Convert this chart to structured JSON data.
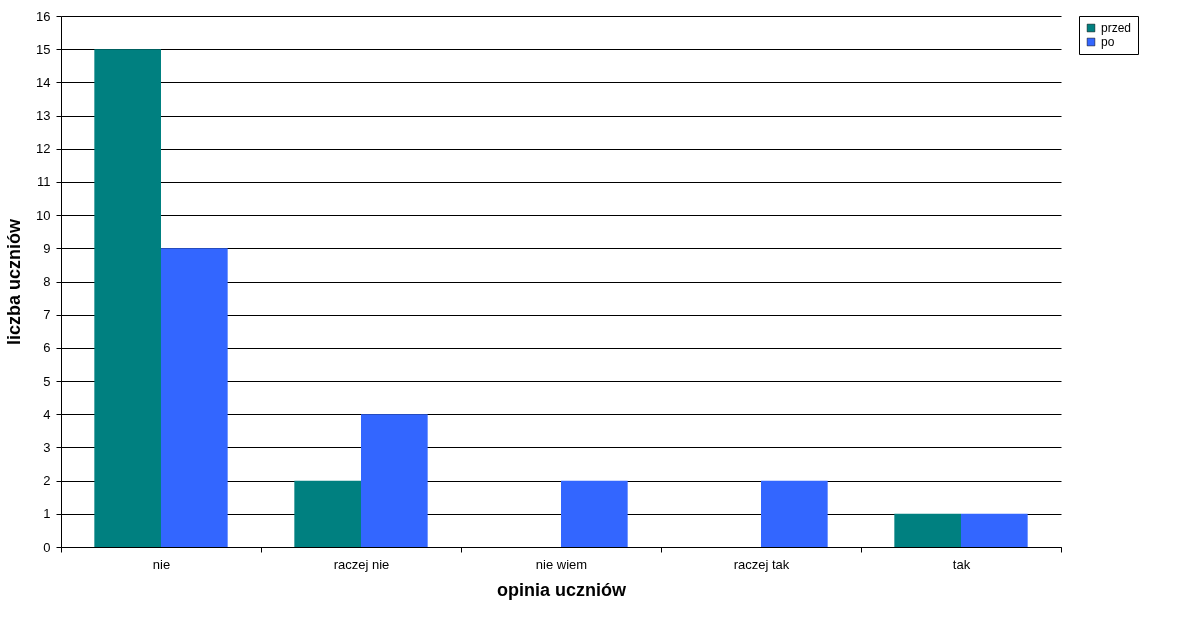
{
  "chart_data": {
    "type": "bar",
    "xlabel": "opinia uczniów",
    "ylabel": "liczba uczniów",
    "categories": [
      "nie",
      "raczej nie",
      "nie wiem",
      "raczej tak",
      "tak"
    ],
    "series": [
      {
        "name": "przed",
        "color": "#008080",
        "values": [
          15,
          2,
          0,
          0,
          1
        ]
      },
      {
        "name": "po",
        "color": "#3366ff",
        "values": [
          9,
          4,
          2,
          2,
          1
        ]
      }
    ],
    "ylim": [
      0,
      16
    ],
    "yticks": [
      0,
      1,
      2,
      3,
      4,
      5,
      6,
      7,
      8,
      9,
      10,
      11,
      12,
      13,
      14,
      15,
      16
    ],
    "grid": "y",
    "legend": "right"
  }
}
